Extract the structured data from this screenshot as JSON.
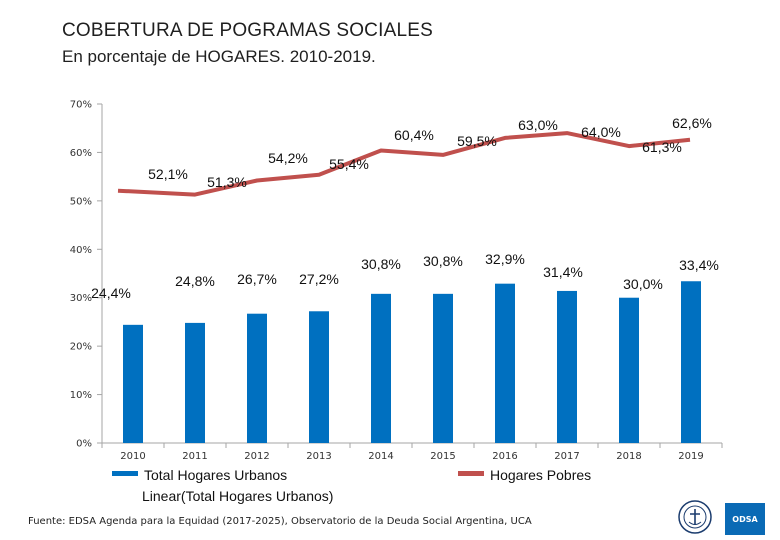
{
  "header": {
    "title": "COBERTURA DE POGRAMAS SOCIALES",
    "subtitle": "En porcentaje de HOGARES. 2010-2019."
  },
  "footer": {
    "source": "Fuente: EDSA Agenda para la Equidad (2017-2025), Observatorio de la Deuda Social Argentina, UCA",
    "logo_text": "ODSA"
  },
  "colors": {
    "bars": "#0070c0",
    "line": "#c0504d",
    "axis": "#a6a6a6"
  },
  "chart_data": {
    "type": "bar",
    "title": "COBERTURA DE POGRAMAS SOCIALES",
    "subtitle": "En porcentaje de HOGARES. 2010-2019.",
    "categories": [
      "2010",
      "2011",
      "2012",
      "2013",
      "2014",
      "2015",
      "2016",
      "2017",
      "2018",
      "2019"
    ],
    "ylim": [
      0,
      70
    ],
    "yticks": [
      "0%",
      "10%",
      "20%",
      "30%",
      "40%",
      "50%",
      "60%",
      "70%"
    ],
    "grid": false,
    "series": [
      {
        "name": "Total Hogares Urbanos",
        "type": "bar",
        "values": [
          24.4,
          24.8,
          26.7,
          27.2,
          30.8,
          30.8,
          32.9,
          31.4,
          30.0,
          33.4
        ],
        "labels": [
          "24,4%",
          "24,8%",
          "26,7%",
          "27,2%",
          "30,8%",
          "30,8%",
          "32,9%",
          "31,4%",
          "30,0%",
          "33,4%"
        ]
      },
      {
        "name": "Hogares Pobres",
        "type": "line",
        "values": [
          52.1,
          51.3,
          54.2,
          55.4,
          60.4,
          59.5,
          63.0,
          64.0,
          61.3,
          62.6
        ],
        "labels": [
          "52,1%",
          "51,3%",
          "54,2%",
          "55,4%",
          "60,4%",
          "59,5%",
          "63,0%",
          "64,0%",
          "61,3%",
          "62,6%"
        ]
      }
    ],
    "legend": [
      "Total Hogares Urbanos",
      "Hogares Pobres",
      "Linear(Total Hogares Urbanos)"
    ]
  }
}
